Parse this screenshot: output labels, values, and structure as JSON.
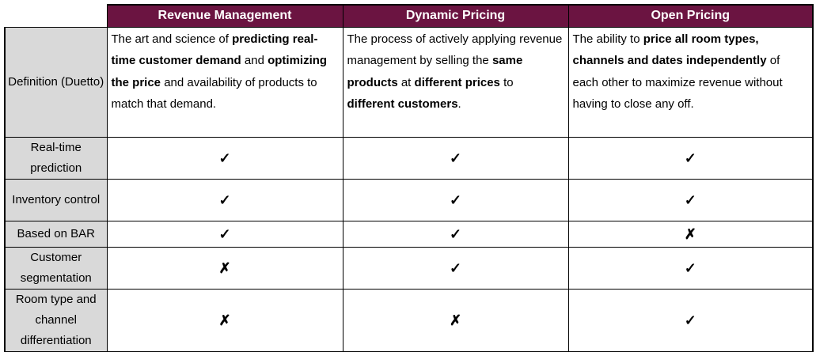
{
  "theme": {
    "header_bg": "#6B1441",
    "header_fg": "#FFFFFF",
    "label_bg": "#D9D9D9",
    "border": "#000000"
  },
  "marks": {
    "check": "✓",
    "cross": "✗"
  },
  "table": {
    "columns": [
      "Revenue Management",
      "Dynamic Pricing",
      "Open Pricing"
    ],
    "definition": {
      "label": "Definition (Duetto)",
      "cells": [
        {
          "segments": [
            {
              "text": "The art and science of ",
              "bold": false
            },
            {
              "text": "predicting real-time customer demand",
              "bold": true
            },
            {
              "text": " and ",
              "bold": false
            },
            {
              "text": "optimizing the price",
              "bold": true
            },
            {
              "text": " and availability of products to match that demand.",
              "bold": false
            }
          ]
        },
        {
          "segments": [
            {
              "text": "The process of actively applying revenue management by selling the ",
              "bold": false
            },
            {
              "text": "same products",
              "bold": true
            },
            {
              "text": " at ",
              "bold": false
            },
            {
              "text": "different prices",
              "bold": true
            },
            {
              "text": " to ",
              "bold": false
            },
            {
              "text": "different customers",
              "bold": true
            },
            {
              "text": ".",
              "bold": false
            }
          ]
        },
        {
          "segments": [
            {
              "text": "The ability to ",
              "bold": false
            },
            {
              "text": "price all room types, channels and dates independently",
              "bold": true
            },
            {
              "text": " of each other to maximize revenue without having to close any off.",
              "bold": false
            }
          ]
        }
      ]
    },
    "features": [
      {
        "label": "Real-time prediction",
        "values": [
          "check",
          "check",
          "check"
        ]
      },
      {
        "label": "Inventory control",
        "values": [
          "check",
          "check",
          "check"
        ]
      },
      {
        "label": "Based on BAR",
        "values": [
          "check",
          "check",
          "cross"
        ]
      },
      {
        "label": "Customer segmentation",
        "values": [
          "cross",
          "check",
          "check"
        ]
      },
      {
        "label": "Room type and channel differentiation",
        "values": [
          "cross",
          "cross",
          "check"
        ]
      }
    ]
  }
}
